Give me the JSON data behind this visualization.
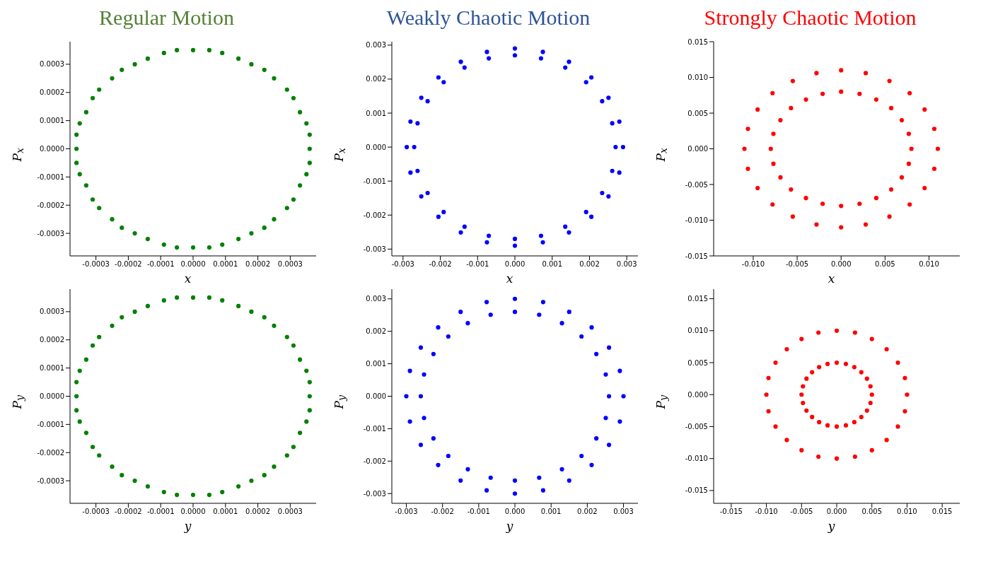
{
  "chart_data": [
    {
      "type": "scatter",
      "title": "Regular Motion",
      "xlabel": "x",
      "ylabel": "P$_{x}$",
      "marker": "circle",
      "xlim": [
        -0.00038,
        0.00038
      ],
      "ylim": [
        -0.00038,
        0.00038
      ],
      "xticks": [
        -0.0003,
        -0.0002,
        -0.0001,
        {
          "value": 0,
          "label": "0.0000"
        },
        0.0001,
        0.0002,
        0.0003
      ],
      "yticks": [
        -0.0003,
        -0.0002,
        -0.0001,
        {
          "value": 0,
          "label": "0.0000"
        },
        0.0001,
        0.0002,
        0.0003
      ],
      "x": [
        0.00036,
        0.00036,
        0.00035,
        0.00033,
        0.00031,
        0.00029,
        0.00025,
        0.00022,
        0.00018,
        0.00014,
        9e-05,
        5e-05,
        0,
        -5e-05,
        -9e-05,
        -0.00014,
        -0.00018,
        -0.00022,
        -0.00025,
        -0.00029,
        -0.00031,
        -0.00033,
        -0.00035,
        -0.00036,
        -0.00036,
        -0.00036,
        -0.00035,
        -0.00033,
        -0.00031,
        -0.00029,
        -0.00025,
        -0.00022,
        -0.00018,
        -0.00014,
        -9e-05,
        -5e-05,
        0,
        5e-05,
        9e-05,
        0.00014,
        0.00018,
        0.00022,
        0.00025,
        0.00029,
        0.00031,
        0.00033,
        0.00035,
        0.00036
      ],
      "series": [
        {
          "color": "#008000",
          "values": [
            0,
            5e-05,
            9e-05,
            0.00013,
            0.00018,
            0.00021,
            0.00025,
            0.00028,
            0.0003,
            0.00032,
            0.00034,
            0.00035,
            0.00035,
            0.00035,
            0.00034,
            0.00032,
            0.0003,
            0.00028,
            0.00025,
            0.00021,
            0.00018,
            0.00013,
            9e-05,
            5e-05,
            0,
            -5e-05,
            -9e-05,
            -0.00013,
            -0.00018,
            -0.00021,
            -0.00025,
            -0.00028,
            -0.0003,
            -0.00032,
            -0.00034,
            -0.00035,
            -0.00035,
            -0.00035,
            -0.00034,
            -0.00032,
            -0.0003,
            -0.00028,
            -0.00025,
            -0.00021,
            -0.00018,
            -0.00013,
            -9e-05,
            -5e-05
          ]
        }
      ]
    },
    {
      "type": "scatter",
      "title": "Weakly Chaotic Motion",
      "xlabel": "x",
      "ylabel": "P$_{x}$",
      "marker": "circle",
      "xlim": [
        -0.0033,
        0.0033
      ],
      "ylim": [
        -0.0032,
        0.0031
      ],
      "xticks": [
        -0.003,
        -0.002,
        -0.001,
        {
          "value": 0,
          "label": "0.000"
        },
        0.001,
        0.002,
        0.003
      ],
      "yticks": [
        -0.003,
        -0.002,
        -0.001,
        {
          "value": 0,
          "label": "0.000"
        },
        0.001,
        0.002,
        0.003
      ],
      "x": [
        0.0029,
        0.0028,
        0.00251,
        0.00205,
        0.00145,
        0.00075,
        0,
        -0.00075,
        -0.00145,
        -0.00205,
        -0.00251,
        -0.0028,
        -0.0029,
        -0.0028,
        -0.00251,
        -0.00205,
        -0.00145,
        -0.00075,
        0,
        0.00075,
        0.00145,
        0.00205,
        0.00251,
        0.0028,
        0.0027,
        0.00261,
        0.00234,
        0.00191,
        0.00135,
        0.0007,
        0,
        -0.0007,
        -0.00135,
        -0.00191,
        -0.00234,
        -0.00261,
        -0.0027,
        -0.00261,
        -0.00234,
        -0.00191,
        -0.00135,
        -0.0007,
        0,
        0.0007,
        0.00135,
        0.00191,
        0.00234,
        0.00261
      ],
      "series": [
        {
          "color": "#0000ff",
          "values": [
            0,
            0.00075,
            0.00145,
            0.00205,
            0.00251,
            0.0028,
            0.0029,
            0.0028,
            0.00251,
            0.00205,
            0.00145,
            0.00075,
            0,
            -0.00075,
            -0.00145,
            -0.00205,
            -0.00251,
            -0.0028,
            -0.0029,
            -0.0028,
            -0.00251,
            -0.00205,
            -0.00145,
            -0.00075,
            0,
            0.0007,
            0.00135,
            0.00191,
            0.00234,
            0.00261,
            0.0027,
            0.00261,
            0.00234,
            0.00191,
            0.00135,
            0.0007,
            0,
            -0.0007,
            -0.00135,
            -0.00191,
            -0.00234,
            -0.00261,
            -0.0027,
            -0.00261,
            -0.00234,
            -0.00191,
            -0.00135,
            -0.0007
          ]
        }
      ]
    },
    {
      "type": "scatter",
      "title": "Strongly Chaotic Motion",
      "xlabel": "x",
      "ylabel": "P$_{x}$",
      "marker": "circle",
      "xlim": [
        -0.0145,
        0.0135
      ],
      "ylim": [
        -0.015,
        0.015
      ],
      "xticks": [
        {
          "value": -0.01,
          "label": "-0.010"
        },
        -0.005,
        {
          "value": 0,
          "label": "0.000"
        },
        0.005,
        {
          "value": 0.01,
          "label": "0.010"
        }
      ],
      "yticks": [
        -0.015,
        {
          "value": -0.01,
          "label": "-0.010"
        },
        -0.005,
        {
          "value": 0,
          "label": "0.000"
        },
        0.005,
        {
          "value": 0.01,
          "label": "0.010"
        },
        0.015
      ],
      "x": [
        0.008,
        0.0077,
        0.0069,
        0.0057,
        0.004,
        0.0021,
        0,
        -0.0021,
        -0.004,
        -0.0057,
        -0.0069,
        -0.0077,
        -0.008,
        -0.0077,
        -0.0069,
        -0.0057,
        -0.004,
        -0.0021,
        0,
        0.0021,
        0.004,
        0.0057,
        0.0069,
        0.0077,
        0.011,
        0.0106,
        0.0095,
        0.0078,
        0.0055,
        0.0028,
        0,
        -0.0028,
        -0.0055,
        -0.0078,
        -0.0095,
        -0.0106,
        -0.011,
        -0.0106,
        -0.0095,
        -0.0078,
        -0.0055,
        -0.0028,
        0,
        0.0028,
        0.0055,
        0.0078,
        0.0095,
        0.0106
      ],
      "series": [
        {
          "color": "#ff0000",
          "values": [
            0,
            0.0021,
            0.004,
            0.0057,
            0.0069,
            0.0077,
            0.008,
            0.0077,
            0.0069,
            0.0057,
            0.004,
            0.0021,
            0,
            -0.0021,
            -0.004,
            -0.0057,
            -0.0069,
            -0.0077,
            -0.008,
            -0.0077,
            -0.0069,
            -0.0057,
            -0.004,
            -0.0021,
            0,
            0.0028,
            0.0055,
            0.0078,
            0.0095,
            0.0106,
            0.011,
            0.0106,
            0.0095,
            0.0078,
            0.0055,
            0.0028,
            0,
            -0.0028,
            -0.0055,
            -0.0078,
            -0.0095,
            -0.0106,
            -0.011,
            -0.0106,
            -0.0095,
            -0.0078,
            -0.0055,
            -0.0028
          ]
        }
      ]
    },
    {
      "type": "scatter",
      "xlabel": "y",
      "ylabel": "P$_{y}$",
      "marker": "circle",
      "xlim": [
        -0.00038,
        0.00038
      ],
      "ylim": [
        -0.00038,
        0.00038
      ],
      "xticks": [
        -0.0003,
        -0.0002,
        -0.0001,
        {
          "value": 0,
          "label": "0.0000"
        },
        0.0001,
        0.0002,
        0.0003
      ],
      "yticks": [
        -0.0003,
        -0.0002,
        -0.0001,
        {
          "value": 0,
          "label": "0.0000"
        },
        0.0001,
        0.0002,
        0.0003
      ],
      "x": [
        0.00036,
        0.00036,
        0.00035,
        0.00033,
        0.00031,
        0.00029,
        0.00025,
        0.00022,
        0.00018,
        0.00014,
        9e-05,
        5e-05,
        0,
        -5e-05,
        -9e-05,
        -0.00014,
        -0.00018,
        -0.00022,
        -0.00025,
        -0.00029,
        -0.00031,
        -0.00033,
        -0.00035,
        -0.00036,
        -0.00036,
        -0.00036,
        -0.00035,
        -0.00033,
        -0.00031,
        -0.00029,
        -0.00025,
        -0.00022,
        -0.00018,
        -0.00014,
        -9e-05,
        -5e-05,
        0,
        5e-05,
        9e-05,
        0.00014,
        0.00018,
        0.00022,
        0.00025,
        0.00029,
        0.00031,
        0.00033,
        0.00035,
        0.00036
      ],
      "series": [
        {
          "color": "#008000",
          "values": [
            0,
            5e-05,
            9e-05,
            0.00013,
            0.00018,
            0.00021,
            0.00025,
            0.00028,
            0.0003,
            0.00032,
            0.00034,
            0.00035,
            0.00035,
            0.00035,
            0.00034,
            0.00032,
            0.0003,
            0.00028,
            0.00025,
            0.00021,
            0.00018,
            0.00013,
            9e-05,
            5e-05,
            0,
            -5e-05,
            -9e-05,
            -0.00013,
            -0.00018,
            -0.00021,
            -0.00025,
            -0.00028,
            -0.0003,
            -0.00032,
            -0.00034,
            -0.00035,
            -0.00035,
            -0.00035,
            -0.00034,
            -0.00032,
            -0.0003,
            -0.00028,
            -0.00025,
            -0.00021,
            -0.00018,
            -0.00013,
            -9e-05,
            -5e-05
          ]
        }
      ]
    },
    {
      "type": "scatter",
      "xlabel": "y",
      "ylabel": "P$_{y}$",
      "marker": "circle",
      "xlim": [
        -0.0034,
        0.0034
      ],
      "ylim": [
        -0.0033,
        0.0033
      ],
      "xticks": [
        -0.003,
        -0.002,
        -0.001,
        {
          "value": 0,
          "label": "0.000"
        },
        0.001,
        0.002,
        0.003
      ],
      "yticks": [
        -0.003,
        -0.002,
        -0.001,
        {
          "value": 0,
          "label": "0.000"
        },
        0.001,
        0.002,
        0.003
      ],
      "x": [
        0.003,
        0.0029,
        0.0026,
        0.00212,
        0.0015,
        0.00078,
        0,
        -0.00078,
        -0.0015,
        -0.00212,
        -0.0026,
        -0.0029,
        -0.003,
        -0.0029,
        -0.0026,
        -0.00212,
        -0.0015,
        -0.00078,
        0,
        0.00078,
        0.0015,
        0.00212,
        0.0026,
        0.0029,
        0.0026,
        0.00251,
        0.00225,
        0.00184,
        0.0013,
        0.00067,
        0,
        -0.00067,
        -0.0013,
        -0.00184,
        -0.00225,
        -0.00251,
        -0.0026,
        -0.00251,
        -0.00225,
        -0.00184,
        -0.0013,
        -0.00067,
        0,
        0.00067,
        0.0013,
        0.00184,
        0.00225,
        0.00251
      ],
      "series": [
        {
          "color": "#0000ff",
          "values": [
            0,
            0.00078,
            0.0015,
            0.00212,
            0.0026,
            0.0029,
            0.003,
            0.0029,
            0.0026,
            0.00212,
            0.0015,
            0.00078,
            0,
            -0.00078,
            -0.0015,
            -0.00212,
            -0.0026,
            -0.0029,
            -0.003,
            -0.0029,
            -0.0026,
            -0.00212,
            -0.0015,
            -0.00078,
            0,
            0.00067,
            0.0013,
            0.00184,
            0.00225,
            0.00251,
            0.0026,
            0.00251,
            0.00225,
            0.00184,
            0.0013,
            0.00067,
            0,
            -0.00067,
            -0.0013,
            -0.00184,
            -0.00225,
            -0.00251,
            -0.0026,
            -0.00251,
            -0.00225,
            -0.00184,
            -0.0013,
            -0.00067
          ]
        }
      ]
    },
    {
      "type": "scatter",
      "xlabel": "y",
      "ylabel": "P$_{y}$",
      "marker": "circle",
      "xlim": [
        -0.0175,
        0.0175
      ],
      "ylim": [
        -0.017,
        0.0165
      ],
      "xticks": [
        -0.015,
        {
          "value": -0.01,
          "label": "-0.010"
        },
        -0.005,
        {
          "value": 0,
          "label": "0.000"
        },
        0.005,
        {
          "value": 0.01,
          "label": "0.010"
        },
        0.015
      ],
      "yticks": [
        -0.015,
        {
          "value": -0.01,
          "label": "-0.010"
        },
        -0.005,
        {
          "value": 0,
          "label": "0.000"
        },
        0.005,
        {
          "value": 0.01,
          "label": "0.010"
        },
        0.015
      ],
      "x": [
        0.005,
        0.0048,
        0.0043,
        0.0035,
        0.0025,
        0.0013,
        0,
        -0.0013,
        -0.0025,
        -0.0035,
        -0.0043,
        -0.0048,
        -0.005,
        -0.0048,
        -0.0043,
        -0.0035,
        -0.0025,
        -0.0013,
        0,
        0.0013,
        0.0025,
        0.0035,
        0.0043,
        0.0048,
        0.01,
        0.0097,
        0.0087,
        0.0071,
        0.005,
        0.0026,
        0,
        -0.0026,
        -0.005,
        -0.0071,
        -0.0087,
        -0.0097,
        -0.01,
        -0.0097,
        -0.0087,
        -0.0071,
        -0.005,
        -0.0026,
        0,
        0.0026,
        0.005,
        0.0071,
        0.0087,
        0.0097
      ],
      "series": [
        {
          "color": "#ff0000",
          "values": [
            0,
            0.0013,
            0.0025,
            0.0035,
            0.0043,
            0.0048,
            0.005,
            0.0048,
            0.0043,
            0.0035,
            0.0025,
            0.0013,
            0,
            -0.0013,
            -0.0025,
            -0.0035,
            -0.0043,
            -0.0048,
            -0.005,
            -0.0048,
            -0.0043,
            -0.0035,
            -0.0025,
            -0.0013,
            0,
            0.0026,
            0.005,
            0.0071,
            0.0087,
            0.0097,
            0.01,
            0.0097,
            0.0087,
            0.0071,
            0.005,
            0.0026,
            0,
            -0.0026,
            -0.005,
            -0.0071,
            -0.0087,
            -0.0097,
            -0.01,
            -0.0097,
            -0.0087,
            -0.0071,
            -0.005,
            -0.0026
          ]
        }
      ]
    }
  ]
}
